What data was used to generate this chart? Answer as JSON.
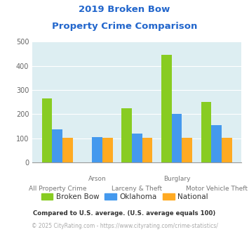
{
  "title_line1": "2019 Broken Bow",
  "title_line2": "Property Crime Comparison",
  "title_color": "#2266cc",
  "categories": [
    "All Property Crime",
    "Arson",
    "Larceny & Theft",
    "Burglary",
    "Motor Vehicle Theft"
  ],
  "x_labels_top": [
    "",
    "Arson",
    "",
    "Burglary",
    ""
  ],
  "x_labels_bottom": [
    "All Property Crime",
    "",
    "Larceny & Theft",
    "",
    "Motor Vehicle Theft"
  ],
  "broken_bow": [
    265,
    0,
    225,
    445,
    250
  ],
  "oklahoma": [
    138,
    105,
    120,
    200,
    155
  ],
  "national": [
    103,
    103,
    103,
    103,
    103
  ],
  "color_bb": "#88cc22",
  "color_ok": "#4499ee",
  "color_na": "#ffaa22",
  "bg_color": "#ddeef2",
  "ylim": [
    0,
    500
  ],
  "yticks": [
    0,
    100,
    200,
    300,
    400,
    500
  ],
  "legend_labels": [
    "Broken Bow",
    "Oklahoma",
    "National"
  ],
  "footnote1": "Compared to U.S. average. (U.S. average equals 100)",
  "footnote2": "© 2025 CityRating.com - https://www.cityrating.com/crime-statistics/",
  "footnote1_color": "#333333",
  "footnote2_color": "#aaaaaa"
}
